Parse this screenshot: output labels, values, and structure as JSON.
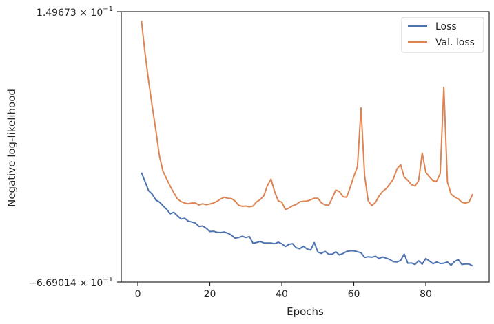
{
  "chart_data": {
    "type": "line",
    "xlabel": "Epochs",
    "ylabel": "Negative log-likelihood",
    "xlim": [
      -4.6,
      97.6
    ],
    "xticks": [
      0,
      20,
      40,
      60,
      80
    ],
    "y_axis_scale": "log (offset)",
    "ytick_labels": [
      "1.49673 × 10",
      "−6.69014 × 10"
    ],
    "ytick_exponent": "−1",
    "legend_position": "top-right",
    "grid": false,
    "series": [
      {
        "name": "Loss",
        "color": "#4c72b0",
        "x": [
          1,
          2,
          3,
          4,
          5,
          6,
          7,
          8,
          9,
          10,
          11,
          12,
          13,
          14,
          15,
          16,
          17,
          18,
          19,
          20,
          21,
          22,
          23,
          24,
          25,
          26,
          27,
          28,
          29,
          30,
          31,
          32,
          33,
          34,
          35,
          36,
          37,
          38,
          39,
          40,
          41,
          42,
          43,
          44,
          45,
          46,
          47,
          48,
          49,
          50,
          51,
          52,
          53,
          54,
          55,
          56,
          57,
          58,
          59,
          60,
          61,
          62,
          63,
          64,
          65,
          66,
          67,
          68,
          69,
          70,
          71,
          72,
          73,
          74,
          75,
          76,
          77,
          78,
          79,
          80,
          81,
          82,
          83,
          84,
          85,
          86,
          87,
          88,
          89,
          90,
          91,
          92,
          93
        ],
        "y": [
          0.0208,
          0.0136,
          0.0062,
          0.0036,
          -0.0012,
          -0.0028,
          -0.0058,
          -0.0086,
          -0.0122,
          -0.011,
          -0.0138,
          -0.0164,
          -0.0158,
          -0.018,
          -0.0188,
          -0.0196,
          -0.0224,
          -0.022,
          -0.0238,
          -0.0264,
          -0.0262,
          -0.027,
          -0.0272,
          -0.0268,
          -0.0278,
          -0.0292,
          -0.0318,
          -0.0312,
          -0.0302,
          -0.0312,
          -0.0304,
          -0.0358,
          -0.0352,
          -0.0344,
          -0.0356,
          -0.0356,
          -0.0356,
          -0.0362,
          -0.035,
          -0.0362,
          -0.0384,
          -0.0366,
          -0.0362,
          -0.0394,
          -0.0402,
          -0.0382,
          -0.0404,
          -0.0412,
          -0.0352,
          -0.0428,
          -0.044,
          -0.0422,
          -0.0446,
          -0.0446,
          -0.0426,
          -0.0452,
          -0.044,
          -0.0424,
          -0.0418,
          -0.0418,
          -0.0426,
          -0.0434,
          -0.0472,
          -0.0466,
          -0.047,
          -0.0462,
          -0.048,
          -0.0468,
          -0.0478,
          -0.0488,
          -0.0506,
          -0.0508,
          -0.0496,
          -0.0444,
          -0.0518,
          -0.0516,
          -0.0528,
          -0.0498,
          -0.0526,
          -0.048,
          -0.05,
          -0.0522,
          -0.0508,
          -0.052,
          -0.0518,
          -0.0508,
          -0.0534,
          -0.0504,
          -0.0488,
          -0.0528,
          -0.0524,
          -0.0524,
          -0.054
        ]
      },
      {
        "name": "Val. loss",
        "color": "#dd8452",
        "x": [
          1,
          2,
          3,
          4,
          5,
          6,
          7,
          8,
          9,
          10,
          11,
          12,
          13,
          14,
          15,
          16,
          17,
          18,
          19,
          20,
          21,
          22,
          23,
          24,
          25,
          26,
          27,
          28,
          29,
          30,
          31,
          32,
          33,
          34,
          35,
          36,
          37,
          38,
          39,
          40,
          41,
          42,
          43,
          44,
          45,
          46,
          47,
          48,
          49,
          50,
          51,
          52,
          53,
          54,
          55,
          56,
          57,
          58,
          59,
          60,
          61,
          62,
          63,
          64,
          65,
          66,
          67,
          68,
          69,
          70,
          71,
          72,
          73,
          74,
          75,
          76,
          77,
          78,
          79,
          80,
          81,
          82,
          83,
          84,
          85,
          86,
          87,
          88,
          89,
          90,
          91,
          92,
          93
        ],
        "y": [
          0.1424,
          0.1164,
          0.0942,
          0.074,
          0.0546,
          0.034,
          0.0218,
          0.0158,
          0.0098,
          0.0046,
          -0.0002,
          -0.0024,
          -0.0036,
          -0.0042,
          -0.0036,
          -0.0036,
          -0.0052,
          -0.0042,
          -0.005,
          -0.0044,
          -0.0036,
          -0.0022,
          -0.0004,
          0.001,
          0.0002,
          0.0,
          -0.002,
          -0.0054,
          -0.0062,
          -0.006,
          -0.0066,
          -0.006,
          -0.0026,
          -0.0008,
          0.0022,
          0.0104,
          0.0156,
          0.0054,
          -0.0018,
          -0.003,
          -0.0088,
          -0.0076,
          -0.0058,
          -0.0048,
          -0.0026,
          -0.0022,
          -0.002,
          -0.001,
          0.0002,
          0.0002,
          -0.0034,
          -0.0052,
          -0.0054,
          0.0004,
          0.0068,
          0.0056,
          0.0014,
          0.001,
          0.009,
          0.0178,
          0.0254,
          0.0726,
          0.0184,
          -0.0018,
          -0.0056,
          -0.0032,
          0.002,
          0.0056,
          0.008,
          0.0116,
          0.0158,
          0.0238,
          0.027,
          0.0172,
          0.0146,
          0.0112,
          0.01,
          0.0144,
          0.0364,
          0.021,
          0.0174,
          0.0142,
          0.0138,
          0.02,
          0.0892,
          0.0132,
          0.0036,
          0.0012,
          -0.0002,
          -0.003,
          -0.0036,
          -0.0028,
          0.0036
        ]
      }
    ]
  }
}
